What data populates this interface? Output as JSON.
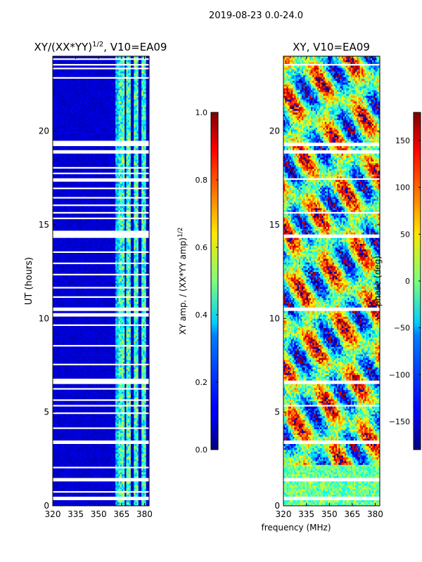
{
  "figure_title": "2019-08-23 0.0-24.0",
  "shared_xlabel": "frequency (MHz)",
  "chart_data": [
    {
      "type": "heatmap",
      "panel": "amplitude",
      "title_main": "XY/(XX*YY)",
      "title_sup": "1/2",
      "title_tail": ", V10=EA09",
      "ylabel": "UT (hours)",
      "xlim": [
        320,
        383
      ],
      "ylim": [
        0,
        24
      ],
      "xticks": [
        320,
        335,
        350,
        365,
        380
      ],
      "yticks": [
        0,
        5,
        10,
        15,
        20
      ],
      "colormap": "jet",
      "colorbar": {
        "label_main": "XY amp. / (XX*YY amp)",
        "label_sup": "1/2",
        "vmin": 0.0,
        "vmax": 1.0,
        "ticks": [
          "0.0",
          "0.2",
          "0.4",
          "0.6",
          "0.8",
          "1.0"
        ],
        "tick_values": [
          0.0,
          0.2,
          0.4,
          0.6,
          0.8,
          1.0
        ]
      },
      "flagged_bands_hours": [
        [
          0.35,
          0.45
        ],
        [
          0.7,
          0.78
        ],
        [
          1.3,
          1.55
        ],
        [
          2.0,
          2.05
        ],
        [
          3.3,
          3.5
        ],
        [
          4.1,
          4.18
        ],
        [
          4.9,
          4.98
        ],
        [
          5.3,
          5.42
        ],
        [
          5.6,
          5.65
        ],
        [
          6.2,
          6.32
        ],
        [
          6.5,
          6.75
        ],
        [
          7.5,
          7.55
        ],
        [
          7.95,
          8.02
        ],
        [
          8.5,
          8.6
        ],
        [
          9.6,
          9.65
        ],
        [
          10.15,
          10.25
        ],
        [
          10.4,
          10.6
        ],
        [
          11.1,
          11.16
        ],
        [
          11.6,
          11.65
        ],
        [
          12.3,
          12.35
        ],
        [
          12.9,
          12.95
        ],
        [
          13.5,
          13.55
        ],
        [
          14.3,
          14.7
        ],
        [
          15.3,
          15.35
        ],
        [
          15.6,
          15.7
        ],
        [
          16.0,
          16.08
        ],
        [
          16.45,
          16.5
        ],
        [
          16.9,
          16.96
        ],
        [
          17.35,
          17.45
        ],
        [
          17.7,
          17.75
        ],
        [
          18.0,
          18.05
        ],
        [
          18.8,
          19.0
        ],
        [
          19.2,
          19.5
        ],
        [
          21.4,
          21.45
        ],
        [
          22.1,
          22.15
        ],
        [
          22.8,
          22.85
        ],
        [
          23.3,
          23.35
        ],
        [
          23.5,
          23.62
        ],
        [
          23.8,
          23.85
        ]
      ],
      "bright_channels_mhz": [
        [
          363,
          367
        ],
        [
          368,
          371
        ],
        [
          373,
          376
        ],
        [
          378,
          381
        ]
      ],
      "background_amplitude": 0.05,
      "channel_amplitude": 0.5
    },
    {
      "type": "heatmap",
      "panel": "phase",
      "title_main": "XY, V10=EA09",
      "xlim": [
        320,
        383
      ],
      "ylim": [
        0,
        24
      ],
      "xticks": [
        320,
        335,
        350,
        365,
        380
      ],
      "yticks": [
        0,
        5,
        10,
        15,
        20
      ],
      "colormap": "jet",
      "colorbar": {
        "label_main": "phase (deg)",
        "vmin": -180,
        "vmax": 180,
        "ticks": [
          "−150",
          "−100",
          "−50",
          "0",
          "50",
          "100",
          "150"
        ],
        "tick_values": [
          -150,
          -100,
          -50,
          0,
          50,
          100,
          150
        ]
      },
      "flagged_bands_hours": [
        [
          0.35,
          0.45
        ],
        [
          1.3,
          1.5
        ],
        [
          3.3,
          3.5
        ],
        [
          5.3,
          5.4
        ],
        [
          6.5,
          6.7
        ],
        [
          10.4,
          10.6
        ],
        [
          14.3,
          14.5
        ],
        [
          15.6,
          15.7
        ],
        [
          17.4,
          17.5
        ],
        [
          18.8,
          19.0
        ],
        [
          19.2,
          19.4
        ],
        [
          23.5,
          23.6
        ]
      ],
      "phase_range_deg": [
        -180,
        180
      ]
    }
  ]
}
